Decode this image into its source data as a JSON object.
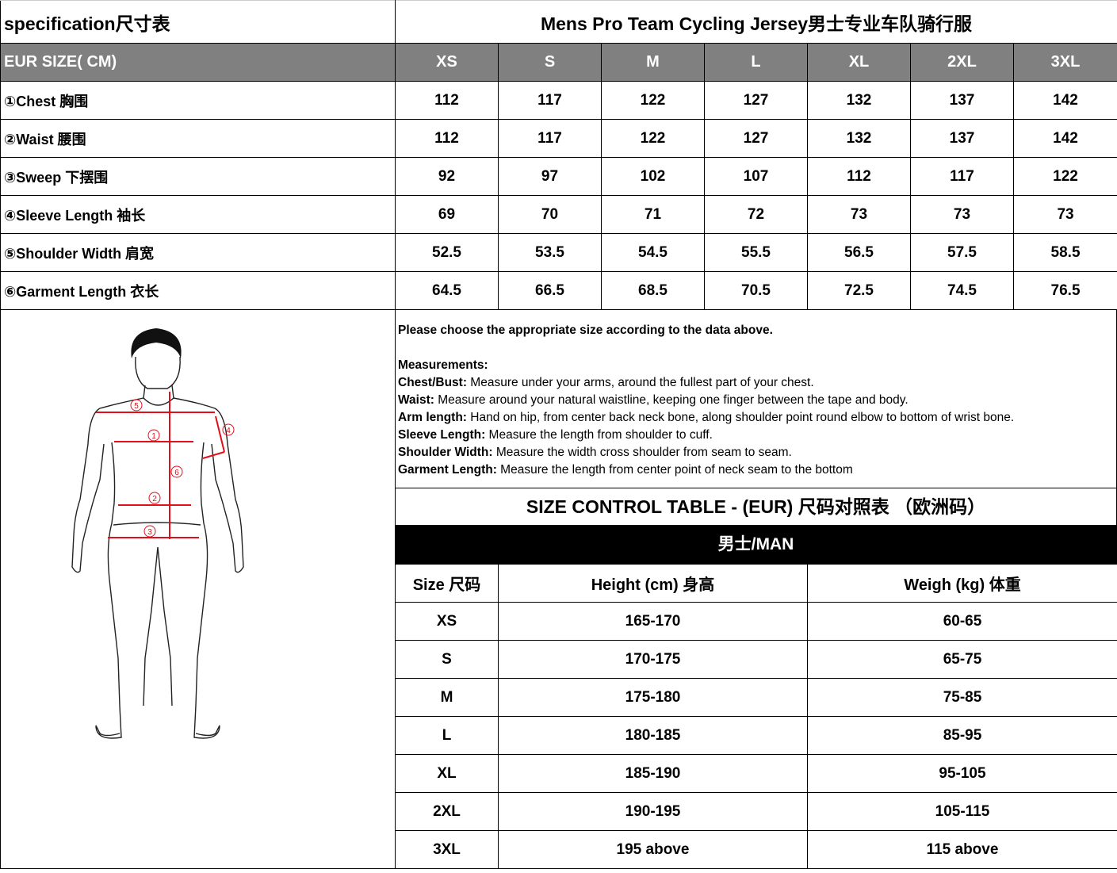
{
  "spec": {
    "title_left": "specification尺寸表",
    "title_right": "Mens Pro Team Cycling Jersey男士专业车队骑行服",
    "header_label": "EUR SIZE( CM)",
    "sizes": [
      "XS",
      "S",
      "M",
      "L",
      "XL",
      "2XL",
      "3XL"
    ],
    "rows": [
      {
        "label": "①Chest 胸围",
        "values": [
          "112",
          "117",
          "122",
          "127",
          "132",
          "137",
          "142"
        ]
      },
      {
        "label": "②Waist 腰围",
        "values": [
          "112",
          "117",
          "122",
          "127",
          "132",
          "137",
          "142"
        ]
      },
      {
        "label": "③Sweep 下摆围",
        "values": [
          "92",
          "97",
          "102",
          "107",
          "112",
          "117",
          "122"
        ]
      },
      {
        "label": "④Sleeve Length 袖长",
        "values": [
          "69",
          "70",
          "71",
          "72",
          "73",
          "73",
          "73"
        ]
      },
      {
        "label": "⑤Shoulder Width 肩宽",
        "values": [
          "52.5",
          "53.5",
          "54.5",
          "55.5",
          "56.5",
          "57.5",
          "58.5"
        ]
      },
      {
        "label": "⑥Garment Length 衣长",
        "values": [
          "64.5",
          "66.5",
          "68.5",
          "70.5",
          "72.5",
          "74.5",
          "76.5"
        ]
      }
    ]
  },
  "figure": {
    "markers": [
      "1",
      "2",
      "3",
      "4",
      "5",
      "6"
    ],
    "accent_color": "#e0101a"
  },
  "notes": {
    "intro": "Please choose the appropriate size according to the data above.",
    "heading": "Measurements:",
    "items": [
      {
        "term": "Chest/Bust:",
        "text": " Measure under your arms, around the fullest part of your chest."
      },
      {
        "term": "Waist:",
        "text": " Measure around your natural waistline, keeping one finger between the tape and body."
      },
      {
        "term": "Arm length:",
        "text": " Hand on hip, from center back neck bone, along shoulder point round elbow to bottom of wrist bone."
      },
      {
        "term": "Sleeve Length:",
        "text": " Measure the length from shoulder to cuff."
      },
      {
        "term": "Shoulder Width:",
        "text": " Measure the width cross shoulder from seam to seam."
      },
      {
        "term": "Garment Length:",
        "text": " Measure the length from center point of neck seam to the bottom"
      }
    ]
  },
  "control": {
    "title": "SIZE CONTROL TABLE - (EUR) 尺码对照表  （欧洲码）",
    "group": "男士/MAN",
    "headers": [
      "Size 尺码",
      "Height (cm) 身高",
      "Weigh (kg) 体重"
    ],
    "rows": [
      [
        "XS",
        "165-170",
        "60-65"
      ],
      [
        "S",
        "170-175",
        "65-75"
      ],
      [
        "M",
        "175-180",
        "75-85"
      ],
      [
        "L",
        "180-185",
        "85-95"
      ],
      [
        "XL",
        "185-190",
        "95-105"
      ],
      [
        "2XL",
        "190-195",
        "105-115"
      ],
      [
        "3XL",
        "195 above",
        "115 above"
      ]
    ]
  }
}
